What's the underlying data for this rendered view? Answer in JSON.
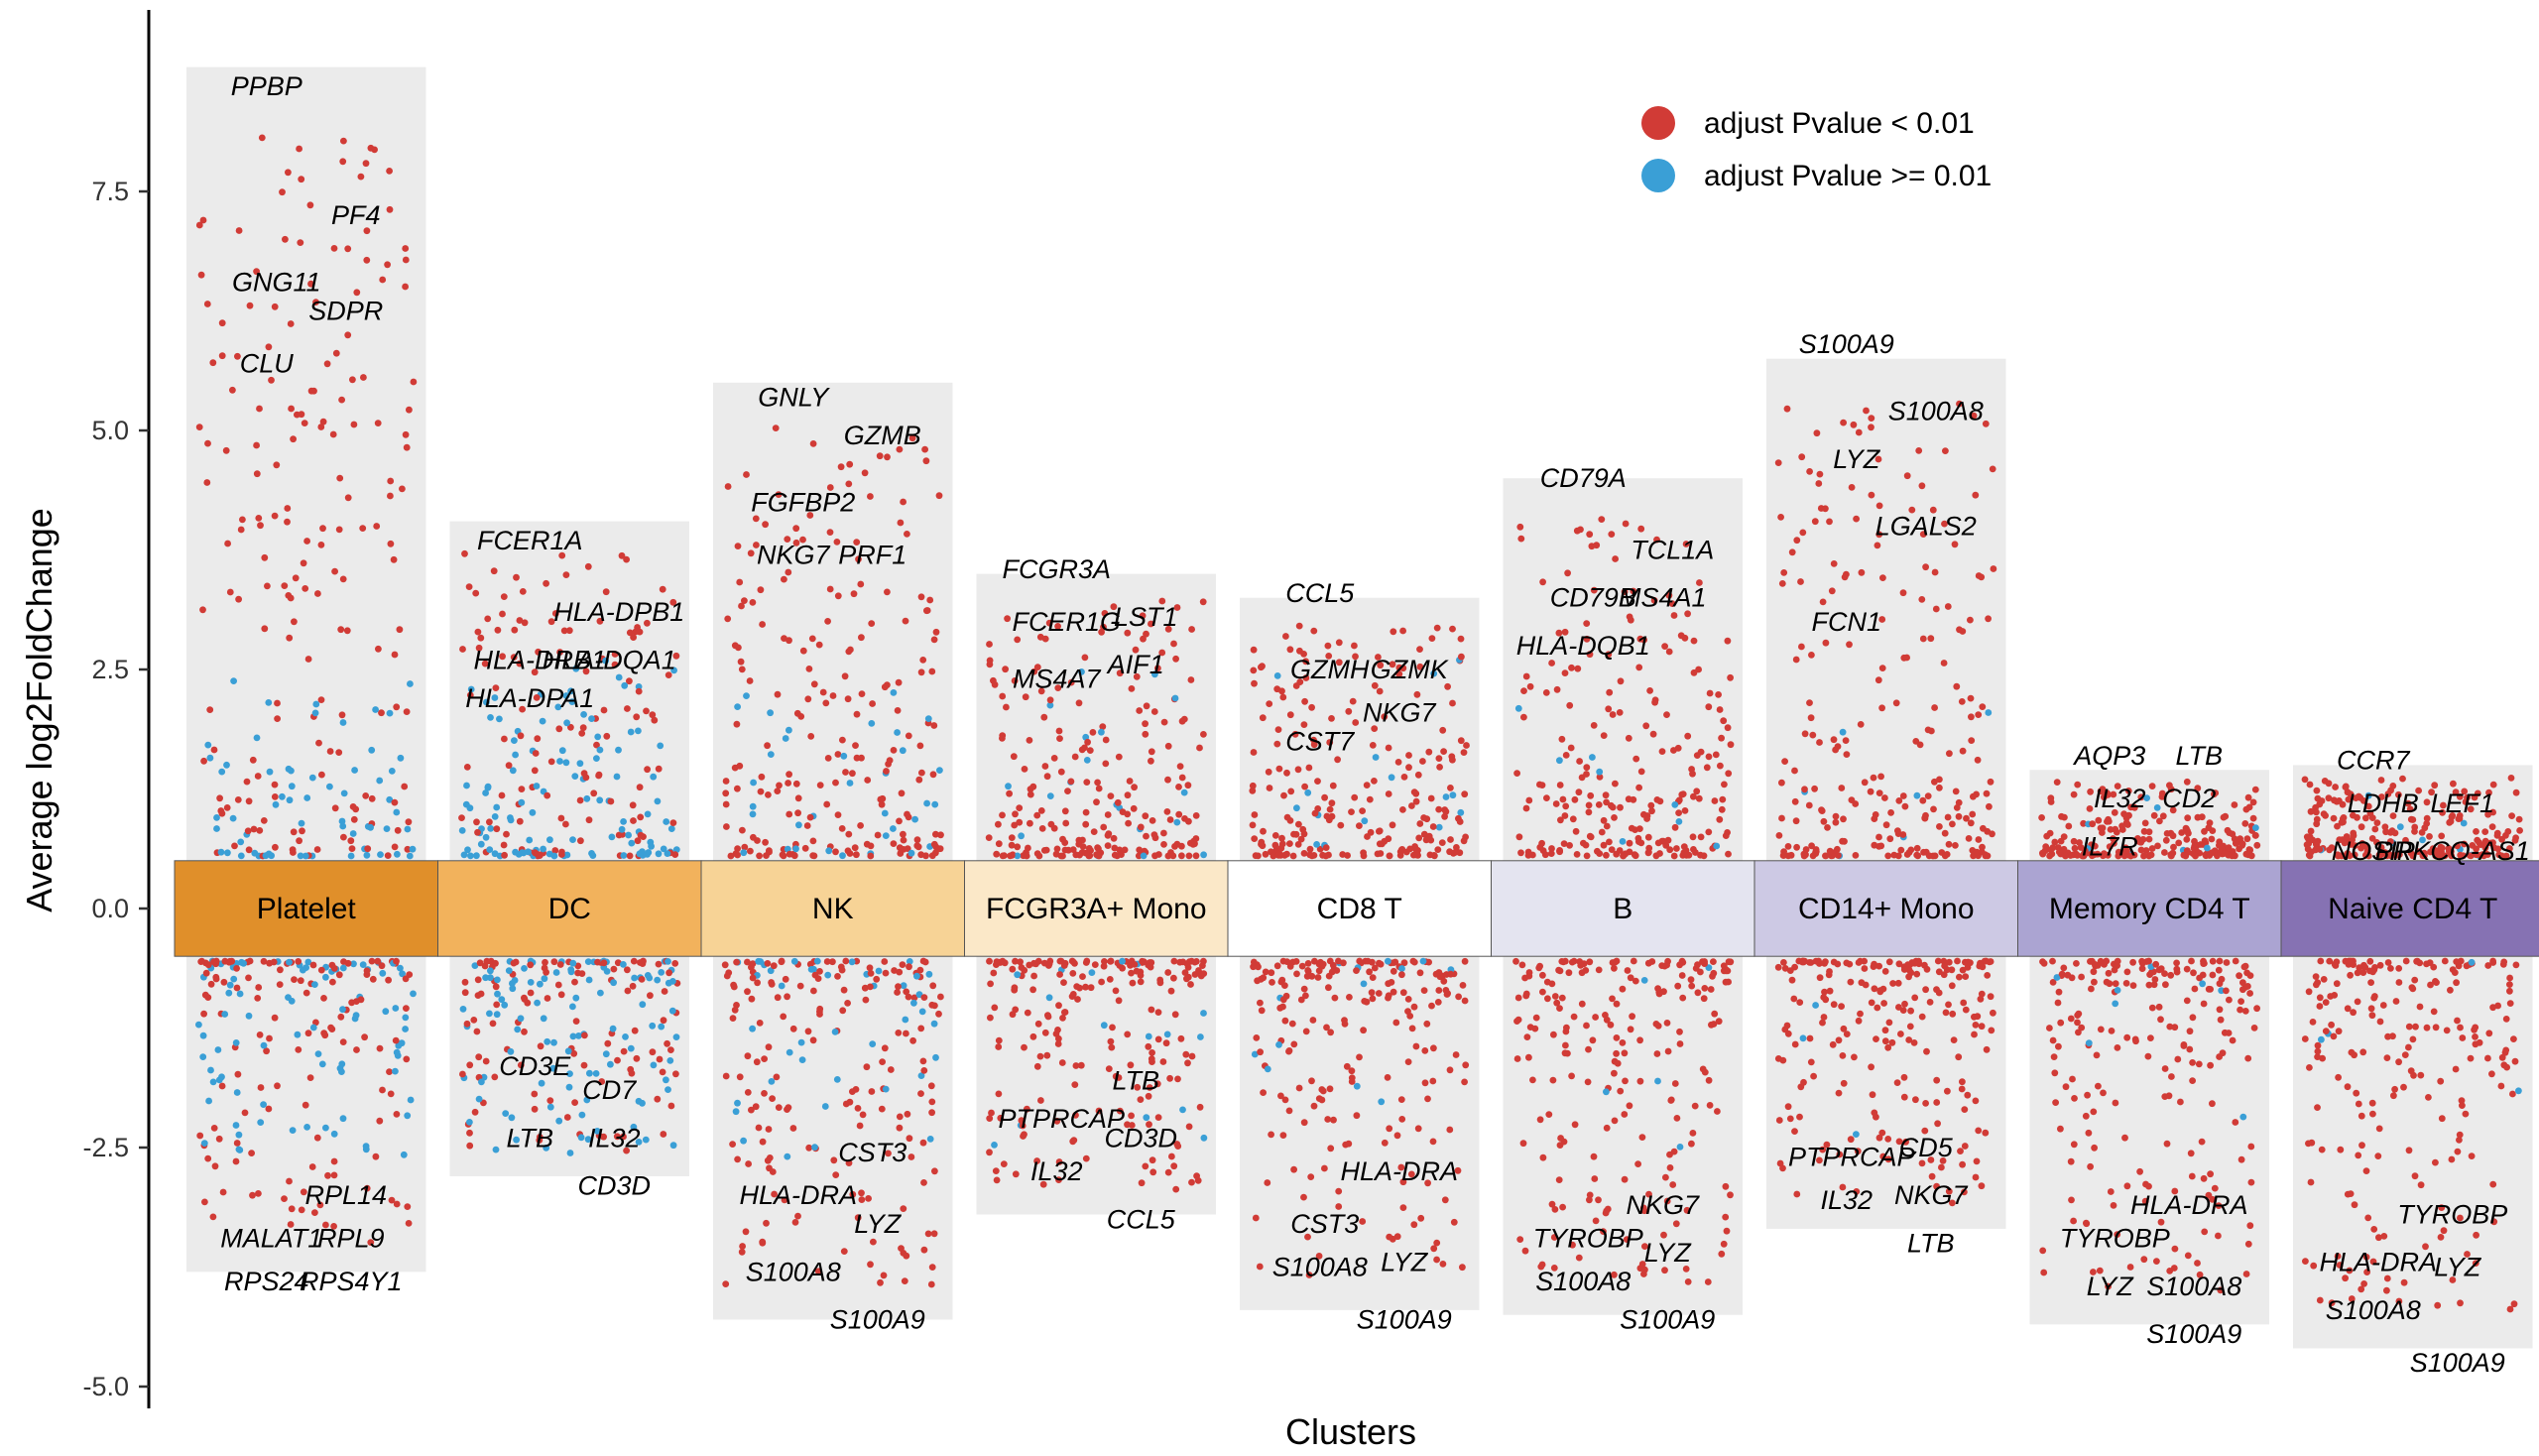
{
  "chart_data": {
    "type": "scatter",
    "title": "",
    "xlabel": "Clusters",
    "ylabel": "Average log2FoldChange",
    "ylim": [
      -5.0,
      9.0
    ],
    "yticks": [
      -5.0,
      -2.5,
      0.0,
      2.5,
      5.0,
      7.5
    ],
    "ytick_labels": [
      "-5.0",
      "-2.5",
      "0.0",
      "2.5",
      "5.0",
      "7.5"
    ],
    "legend": {
      "placement": "top-right",
      "entries": [
        {
          "label": "adjust Pvalue < 0.01",
          "color": "#d13b36"
        },
        {
          "label": "adjust Pvalue >= 0.01",
          "color": "#3a9fd6"
        }
      ]
    },
    "colors": {
      "significant": "#d13b36",
      "not_significant": "#3a9fd6",
      "background_column": "#ebebeb"
    },
    "clusters": [
      {
        "name": "Platelet",
        "color": "#e08f2a",
        "ymax": 8.8,
        "ymin": -3.8,
        "labels": [
          [
            "PPBP",
            8.6
          ],
          [
            "PF4",
            7.25
          ],
          [
            "GNG11",
            6.55
          ],
          [
            "SDPR",
            6.25
          ],
          [
            "CLU",
            5.7
          ],
          [
            "RPL14",
            -3.0
          ],
          [
            "MALAT1",
            -3.45
          ],
          [
            "RPL9",
            -3.45
          ],
          [
            "RPS24",
            -3.9
          ],
          [
            "RPS4Y1",
            -3.9
          ]
        ]
      },
      {
        "name": "DC",
        "color": "#f2b25c",
        "ymax": 4.05,
        "ymin": -2.8,
        "labels": [
          [
            "FCER1A",
            3.85
          ],
          [
            "HLA-DPB1",
            3.1
          ],
          [
            "HLA-DRB1",
            2.6
          ],
          [
            "HLA-DQA1",
            2.6
          ],
          [
            "HLA-DPA1",
            2.2
          ],
          [
            "CD7",
            -1.9
          ],
          [
            "CD3E",
            -1.65
          ],
          [
            "IL32",
            -2.4
          ],
          [
            "LTB",
            -2.4
          ],
          [
            "CD3D",
            -2.9
          ]
        ]
      },
      {
        "name": "NK",
        "color": "#f7d396",
        "ymax": 5.5,
        "ymin": -4.3,
        "labels": [
          [
            "GNLY",
            5.35
          ],
          [
            "GZMB",
            4.95
          ],
          [
            "FGFBP2",
            4.25
          ],
          [
            "PRF1",
            3.7
          ],
          [
            "NKG7",
            3.7
          ],
          [
            "CST3",
            -2.55
          ],
          [
            "HLA-DRA",
            -3.0
          ],
          [
            "LYZ",
            -3.3
          ],
          [
            "S100A8",
            -3.8
          ],
          [
            "S100A9",
            -4.3
          ]
        ]
      },
      {
        "name": "FCGR3A+ Mono",
        "color": "#fbe8c8",
        "ymax": 3.5,
        "ymin": -3.2,
        "labels": [
          [
            "FCGR3A",
            3.55
          ],
          [
            "LST1",
            3.05
          ],
          [
            "FCER1G",
            3.0
          ],
          [
            "AIF1",
            2.55
          ],
          [
            "MS4A7",
            2.4
          ],
          [
            "LTB",
            -1.8
          ],
          [
            "PTPRCAP",
            -2.2
          ],
          [
            "CD3D",
            -2.4
          ],
          [
            "IL32",
            -2.75
          ],
          [
            "CCL5",
            -3.25
          ]
        ]
      },
      {
        "name": "CD8 T",
        "color": "#ffffff",
        "ymax": 3.25,
        "ymin": -4.2,
        "labels": [
          [
            "CCL5",
            3.3
          ],
          [
            "GZMK",
            2.5
          ],
          [
            "GZMH",
            2.5
          ],
          [
            "NKG7",
            2.05
          ],
          [
            "CST7",
            1.75
          ],
          [
            "HLA-DRA",
            -2.75
          ],
          [
            "CST3",
            -3.3
          ],
          [
            "LYZ",
            -3.7
          ],
          [
            "S100A8",
            -3.75
          ],
          [
            "S100A9",
            -4.3
          ]
        ]
      },
      {
        "name": "B",
        "color": "#e4e4f0",
        "ymax": 4.5,
        "ymin": -4.25,
        "labels": [
          [
            "CD79A",
            4.5
          ],
          [
            "TCL1A",
            3.75
          ],
          [
            "CD79B",
            3.25
          ],
          [
            "MS4A1",
            3.25
          ],
          [
            "HLA-DQB1",
            2.75
          ],
          [
            "NKG7",
            -3.1
          ],
          [
            "TYROBP",
            -3.45
          ],
          [
            "LYZ",
            -3.6
          ],
          [
            "S100A8",
            -3.9
          ],
          [
            "S100A9",
            -4.3
          ]
        ]
      },
      {
        "name": "CD14+ Mono",
        "color": "#cdc9e4",
        "ymax": 5.75,
        "ymin": -3.35,
        "labels": [
          [
            "S100A9",
            5.9
          ],
          [
            "S100A8",
            5.2
          ],
          [
            "LYZ",
            4.7
          ],
          [
            "LGALS2",
            4.0
          ],
          [
            "FCN1",
            3.0
          ],
          [
            "CD5",
            -2.5
          ],
          [
            "PTPRCAP",
            -2.6
          ],
          [
            "NKG7",
            -3.0
          ],
          [
            "IL32",
            -3.05
          ],
          [
            "LTB",
            -3.5
          ]
        ]
      },
      {
        "name": "Memory CD4 T",
        "color": "#aba4d2",
        "ymax": 1.45,
        "ymin": -4.35,
        "labels": [
          [
            "AQP3",
            1.6
          ],
          [
            "LTB",
            1.6
          ],
          [
            "IL32",
            1.15
          ],
          [
            "CD2",
            1.15
          ],
          [
            "IL7R",
            0.65
          ],
          [
            "HLA-DRA",
            -3.1
          ],
          [
            "TYROBP",
            -3.45
          ],
          [
            "S100A8",
            -3.95
          ],
          [
            "LYZ",
            -3.95
          ],
          [
            "S100A9",
            -4.45
          ]
        ]
      },
      {
        "name": "Naive CD4 T",
        "color": "#8672b3",
        "ymax": 1.5,
        "ymin": -4.6,
        "labels": [
          [
            "CCR7",
            1.55
          ],
          [
            "LEF1",
            1.1
          ],
          [
            "LDHB",
            1.1
          ],
          [
            "PRKCQ-AS1",
            0.6
          ],
          [
            "NOSIP",
            0.6
          ],
          [
            "TYROBP",
            -3.2
          ],
          [
            "HLA-DRA",
            -3.7
          ],
          [
            "LYZ",
            -3.75
          ],
          [
            "S100A8",
            -4.2
          ],
          [
            "S100A9",
            -4.75
          ]
        ]
      }
    ]
  }
}
